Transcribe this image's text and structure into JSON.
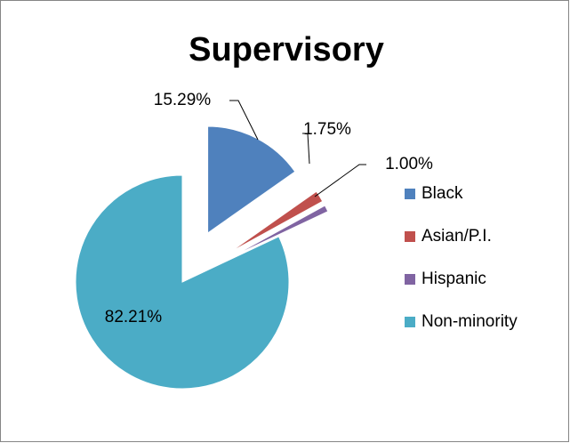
{
  "chart_data": {
    "type": "pie",
    "title": "Supervisory",
    "categories": [
      "Black",
      "Asian/P.I.",
      "Hispanic",
      "Non-minority"
    ],
    "values": [
      15.29,
      1.75,
      1.0,
      82.21
    ],
    "value_labels": [
      "15.29%",
      "1.75%",
      "1.00%",
      "82.21%"
    ],
    "colors": [
      "#4f81bd",
      "#c0504d",
      "#8064a2",
      "#4bacc6"
    ],
    "explode": [
      true,
      true,
      true,
      false
    ],
    "legend": "right"
  }
}
